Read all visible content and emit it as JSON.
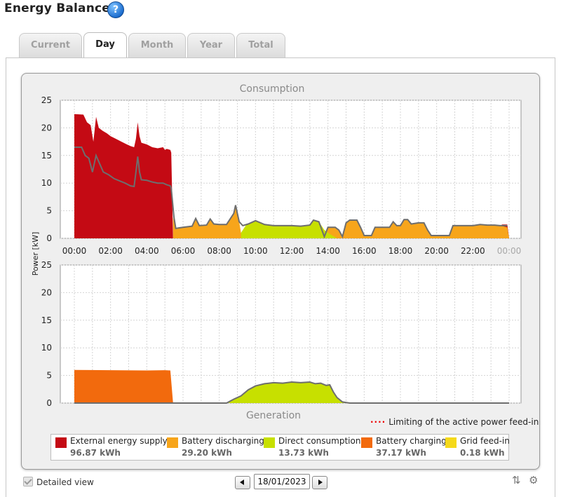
{
  "header": {
    "title": "Energy Balance",
    "help_icon": "?"
  },
  "tabs": [
    {
      "label": "Current",
      "active": false
    },
    {
      "label": "Day",
      "active": true
    },
    {
      "label": "Month",
      "active": false
    },
    {
      "label": "Year",
      "active": false
    },
    {
      "label": "Total",
      "active": false
    }
  ],
  "chart_data": {
    "type": "area",
    "ylabel": "Power [kW]",
    "consumption": {
      "title": "Consumption",
      "ylim": [
        0,
        25
      ],
      "yticks": [
        0,
        5,
        10,
        15,
        20,
        25
      ],
      "x_labels": [
        "00:00",
        "02:00",
        "04:00",
        "06:00",
        "08:00",
        "10:00",
        "12:00",
        "14:00",
        "16:00",
        "18:00",
        "20:00",
        "22:00",
        "00:00"
      ],
      "series": [
        {
          "name": "External energy supply",
          "color": "#c40a14",
          "points": [
            [
              0.0,
              22.5
            ],
            [
              0.5,
              22.4
            ],
            [
              0.7,
              21.0
            ],
            [
              0.9,
              20.5
            ],
            [
              1.05,
              17.5
            ],
            [
              1.2,
              22.0
            ],
            [
              1.35,
              20.0
            ],
            [
              1.55,
              19.5
            ],
            [
              1.8,
              19.0
            ],
            [
              2.0,
              18.5
            ],
            [
              2.3,
              18.0
            ],
            [
              2.6,
              17.5
            ],
            [
              2.9,
              17.0
            ],
            [
              3.1,
              16.7
            ],
            [
              3.3,
              16.5
            ],
            [
              3.4,
              18.0
            ],
            [
              3.5,
              21.0
            ],
            [
              3.6,
              18.5
            ],
            [
              3.7,
              17.3
            ],
            [
              4.0,
              17.0
            ],
            [
              4.3,
              16.5
            ],
            [
              4.6,
              16.3
            ],
            [
              4.9,
              16.5
            ],
            [
              5.0,
              16.0
            ],
            [
              5.1,
              16.2
            ],
            [
              5.3,
              16.0
            ],
            [
              5.35,
              15.5
            ],
            [
              5.45,
              0.0
            ],
            [
              23.5,
              0.0
            ],
            [
              23.6,
              2.5
            ],
            [
              23.9,
              2.5
            ],
            [
              24.0,
              0.0
            ]
          ]
        },
        {
          "name": "Battery discharging",
          "color": "#f7a51b",
          "points": [
            [
              5.45,
              3.8
            ],
            [
              5.6,
              1.8
            ],
            [
              6.0,
              2.0
            ],
            [
              6.5,
              2.2
            ],
            [
              6.7,
              3.6
            ],
            [
              6.9,
              2.3
            ],
            [
              7.3,
              2.4
            ],
            [
              7.5,
              3.5
            ],
            [
              7.7,
              2.6
            ],
            [
              8.0,
              2.5
            ],
            [
              8.4,
              2.5
            ],
            [
              8.6,
              3.5
            ],
            [
              8.8,
              4.5
            ],
            [
              8.9,
              6.0
            ],
            [
              9.0,
              4.5
            ],
            [
              9.1,
              3.0
            ],
            [
              9.2,
              1.0
            ],
            [
              9.4,
              0.5
            ],
            [
              13.8,
              0.0
            ],
            [
              14.0,
              2.0
            ],
            [
              14.4,
              2.0
            ],
            [
              14.6,
              1.5
            ],
            [
              14.8,
              0.0
            ],
            [
              15.0,
              2.8
            ],
            [
              15.2,
              3.3
            ],
            [
              15.6,
              3.3
            ],
            [
              15.8,
              2.0
            ],
            [
              16.0,
              0.5
            ],
            [
              16.4,
              0.5
            ],
            [
              16.6,
              2.0
            ],
            [
              17.0,
              2.0
            ],
            [
              17.4,
              2.0
            ],
            [
              17.6,
              3.0
            ],
            [
              17.8,
              2.3
            ],
            [
              18.0,
              2.3
            ],
            [
              18.2,
              3.4
            ],
            [
              18.4,
              3.4
            ],
            [
              18.6,
              2.6
            ],
            [
              19.0,
              2.8
            ],
            [
              19.3,
              2.8
            ],
            [
              19.5,
              1.5
            ],
            [
              19.7,
              0.5
            ],
            [
              20.7,
              0.5
            ],
            [
              20.9,
              2.3
            ],
            [
              21.5,
              2.3
            ],
            [
              22.0,
              2.3
            ],
            [
              22.4,
              2.5
            ],
            [
              22.8,
              2.4
            ],
            [
              23.2,
              2.4
            ],
            [
              23.5,
              2.3
            ],
            [
              23.9,
              2.0
            ],
            [
              24.0,
              0.0
            ]
          ]
        },
        {
          "name": "Direct consumption",
          "color": "#c7e000",
          "points": [
            [
              9.2,
              1.0
            ],
            [
              9.5,
              2.5
            ],
            [
              10.0,
              3.2
            ],
            [
              10.5,
              2.5
            ],
            [
              11.0,
              2.3
            ],
            [
              11.5,
              2.3
            ],
            [
              12.0,
              2.3
            ],
            [
              12.5,
              2.2
            ],
            [
              13.0,
              2.4
            ],
            [
              13.2,
              3.3
            ],
            [
              13.5,
              3.0
            ],
            [
              13.8,
              1.5
            ],
            [
              14.1,
              0.8
            ],
            [
              14.5,
              0.0
            ]
          ]
        }
      ],
      "total_consumption_line": [
        [
          0.0,
          16.5
        ],
        [
          0.4,
          16.5
        ],
        [
          0.6,
          15.0
        ],
        [
          0.8,
          14.5
        ],
        [
          1.0,
          12.0
        ],
        [
          1.2,
          15.0
        ],
        [
          1.4,
          13.5
        ],
        [
          1.6,
          12.0
        ],
        [
          1.9,
          11.5
        ],
        [
          2.2,
          10.8
        ],
        [
          2.5,
          10.4
        ],
        [
          2.8,
          10.0
        ],
        [
          3.1,
          9.5
        ],
        [
          3.3,
          9.4
        ],
        [
          3.4,
          12.0
        ],
        [
          3.5,
          14.8
        ],
        [
          3.6,
          12.0
        ],
        [
          3.7,
          10.6
        ],
        [
          4.0,
          10.5
        ],
        [
          4.3,
          10.2
        ],
        [
          4.6,
          10.0
        ],
        [
          4.9,
          10.0
        ],
        [
          5.1,
          9.7
        ],
        [
          5.3,
          9.5
        ],
        [
          5.35,
          9.0
        ],
        [
          5.5,
          3.8
        ],
        [
          5.6,
          1.8
        ],
        [
          6.0,
          2.0
        ],
        [
          6.5,
          2.2
        ],
        [
          6.7,
          3.6
        ],
        [
          6.9,
          2.3
        ],
        [
          7.3,
          2.4
        ],
        [
          7.5,
          3.5
        ],
        [
          7.7,
          2.6
        ],
        [
          8.0,
          2.5
        ],
        [
          8.4,
          2.5
        ],
        [
          8.6,
          3.5
        ],
        [
          8.8,
          4.5
        ],
        [
          8.9,
          6.0
        ],
        [
          9.0,
          4.5
        ],
        [
          9.1,
          3.0
        ],
        [
          9.3,
          2.3
        ],
        [
          9.6,
          2.6
        ],
        [
          10.0,
          3.2
        ],
        [
          10.5,
          2.5
        ],
        [
          11.0,
          2.3
        ],
        [
          11.5,
          2.3
        ],
        [
          12.0,
          2.3
        ],
        [
          12.5,
          2.2
        ],
        [
          13.0,
          2.4
        ],
        [
          13.2,
          3.3
        ],
        [
          13.5,
          3.0
        ],
        [
          13.8,
          0.3
        ],
        [
          14.0,
          2.0
        ],
        [
          14.4,
          2.0
        ],
        [
          14.6,
          1.5
        ],
        [
          14.8,
          0.3
        ],
        [
          15.0,
          2.8
        ],
        [
          15.2,
          3.3
        ],
        [
          15.6,
          3.3
        ],
        [
          15.8,
          2.0
        ],
        [
          16.0,
          0.5
        ],
        [
          16.4,
          0.5
        ],
        [
          16.6,
          2.0
        ],
        [
          17.0,
          2.0
        ],
        [
          17.4,
          2.0
        ],
        [
          17.6,
          3.0
        ],
        [
          17.8,
          2.3
        ],
        [
          18.0,
          2.3
        ],
        [
          18.2,
          3.4
        ],
        [
          18.4,
          3.4
        ],
        [
          18.6,
          2.6
        ],
        [
          19.0,
          2.8
        ],
        [
          19.3,
          2.8
        ],
        [
          19.5,
          1.5
        ],
        [
          19.7,
          0.5
        ],
        [
          20.7,
          0.5
        ],
        [
          20.9,
          2.3
        ],
        [
          21.5,
          2.3
        ],
        [
          22.0,
          2.3
        ],
        [
          22.4,
          2.5
        ],
        [
          22.8,
          2.4
        ],
        [
          23.2,
          2.4
        ],
        [
          23.5,
          2.3
        ],
        [
          23.9,
          2.3
        ]
      ]
    },
    "generation": {
      "title": "Generation",
      "ylim": [
        0,
        25
      ],
      "yticks": [
        0,
        5,
        10,
        15,
        20,
        25
      ],
      "series": [
        {
          "name": "Battery charging",
          "color": "#f26a0d",
          "points": [
            [
              0.0,
              6.0
            ],
            [
              2.0,
              5.95
            ],
            [
              4.0,
              5.9
            ],
            [
              5.0,
              5.95
            ],
            [
              5.3,
              5.9
            ],
            [
              5.45,
              0.0
            ],
            [
              10.0,
              0.0
            ],
            [
              10.2,
              0.5
            ],
            [
              10.5,
              1.1
            ],
            [
              10.8,
              0.9
            ],
            [
              11.2,
              1.0
            ],
            [
              11.6,
              1.0
            ],
            [
              12.0,
              1.0
            ],
            [
              12.2,
              1.0
            ],
            [
              12.4,
              0.5
            ],
            [
              13.0,
              0.5
            ],
            [
              13.2,
              1.5
            ],
            [
              13.4,
              3.0
            ],
            [
              13.6,
              2.5
            ],
            [
              13.8,
              2.0
            ],
            [
              14.0,
              1.0
            ],
            [
              14.3,
              0.3
            ],
            [
              14.6,
              0.0
            ]
          ]
        },
        {
          "name": "Direct consumption",
          "color": "#c7e000",
          "points": [
            [
              8.5,
              0.0
            ],
            [
              8.8,
              0.7
            ],
            [
              9.2,
              1.3
            ],
            [
              9.6,
              2.4
            ],
            [
              10.0,
              3.1
            ],
            [
              10.5,
              3.5
            ],
            [
              11.0,
              3.7
            ],
            [
              11.5,
              3.6
            ],
            [
              12.0,
              3.8
            ],
            [
              12.5,
              3.7
            ],
            [
              13.0,
              3.8
            ],
            [
              13.3,
              3.5
            ],
            [
              13.6,
              3.6
            ],
            [
              13.9,
              3.2
            ],
            [
              14.1,
              3.3
            ],
            [
              14.3,
              2.0
            ],
            [
              14.5,
              1.0
            ],
            [
              14.8,
              0.2
            ],
            [
              15.2,
              0.0
            ]
          ]
        }
      ],
      "total_generation_line": [
        [
          0.0,
          0.0
        ],
        [
          8.4,
          0.0
        ],
        [
          8.8,
          0.7
        ],
        [
          9.2,
          1.3
        ],
        [
          9.6,
          2.4
        ],
        [
          10.0,
          3.1
        ],
        [
          10.5,
          3.5
        ],
        [
          11.0,
          3.7
        ],
        [
          11.5,
          3.6
        ],
        [
          12.0,
          3.8
        ],
        [
          12.5,
          3.7
        ],
        [
          13.0,
          3.8
        ],
        [
          13.3,
          3.5
        ],
        [
          13.6,
          3.6
        ],
        [
          13.9,
          3.2
        ],
        [
          14.1,
          3.3
        ],
        [
          14.3,
          2.0
        ],
        [
          14.5,
          1.0
        ],
        [
          14.8,
          0.2
        ],
        [
          15.2,
          0.0
        ],
        [
          24.0,
          0.0
        ]
      ]
    }
  },
  "limit_label": "Limiting of the active power feed-in",
  "legend": [
    {
      "label": "External energy supply",
      "value": "96.87 kWh",
      "color": "#c40a14"
    },
    {
      "label": "Battery discharging",
      "value": "29.20 kWh",
      "color": "#f7a51b"
    },
    {
      "label": "Direct consumption",
      "value": "13.73 kWh",
      "color": "#c7e000"
    },
    {
      "label": "Battery charging",
      "value": "37.17 kWh",
      "color": "#f26a0d"
    },
    {
      "label": "Grid feed-in",
      "value": "0.18 kWh",
      "color": "#f5d91a"
    }
  ],
  "footer": {
    "detailed_view_label": "Detailed view",
    "date": "18/01/2023"
  }
}
